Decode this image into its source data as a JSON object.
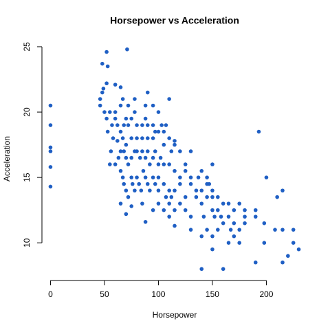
{
  "chart_data": {
    "type": "scatter",
    "title": "Horsepower vs Acceleration",
    "x_label": "Horsepower",
    "y_label": "Acceleration",
    "color": "#1f5fc4",
    "xlim": [
      -9.2,
      239.2
    ],
    "ylim": [
      7.328,
      25.472
    ],
    "xticks": [
      0,
      50,
      100,
      150,
      200
    ],
    "yticks": [
      10,
      15,
      20,
      25
    ],
    "x": [
      0,
      0,
      0,
      0,
      0,
      0,
      46,
      46,
      48,
      49,
      65,
      60,
      52,
      53,
      48,
      52,
      71,
      88,
      90,
      110,
      100,
      95,
      78,
      72,
      67,
      65,
      60,
      50,
      55,
      52,
      53,
      57,
      58,
      56,
      55,
      60,
      62,
      65,
      67,
      68,
      70,
      72,
      75,
      78,
      80,
      85,
      88,
      90,
      95,
      97,
      100,
      105,
      110,
      112,
      115,
      68,
      70,
      72,
      75,
      78,
      80,
      83,
      85,
      88,
      90,
      92,
      95,
      97,
      100,
      102,
      105,
      110,
      115,
      120,
      125,
      130,
      120,
      60,
      63,
      65,
      67,
      68,
      70,
      72,
      75,
      76,
      78,
      80,
      82,
      84,
      86,
      88,
      90,
      92,
      95,
      97,
      100,
      100,
      105,
      107,
      110,
      110,
      112,
      115,
      115,
      120,
      125,
      130,
      130,
      135,
      137,
      140,
      140,
      142,
      145,
      145,
      147,
      150,
      150,
      152,
      155,
      155,
      158,
      160,
      160,
      165,
      165,
      167,
      170,
      170,
      170,
      175,
      175,
      180,
      180,
      180,
      175,
      140,
      145,
      150,
      130,
      125,
      120,
      115,
      105,
      107,
      103,
      95,
      90,
      85,
      80,
      75,
      70,
      65,
      62,
      65,
      70,
      75,
      85,
      88,
      95,
      100,
      105,
      110,
      115,
      125,
      150,
      150,
      140,
      160,
      140,
      190,
      215,
      220,
      230,
      225,
      198,
      215,
      225,
      198,
      190,
      190,
      208,
      210,
      215,
      200,
      193,
      150,
      145,
      135,
      130,
      155,
      165
    ],
    "values": [
      20.5,
      19,
      17.3,
      17,
      15.8,
      14.3,
      20.5,
      21,
      21.5,
      21.8,
      21.9,
      22.1,
      22.2,
      23.5,
      23.7,
      24.6,
      24.8,
      20.5,
      21.5,
      21,
      20,
      20.5,
      21,
      20.5,
      21,
      20.5,
      20,
      20,
      20,
      19.5,
      18.5,
      19,
      18,
      17,
      16,
      19.5,
      19,
      18.5,
      18,
      19,
      19.5,
      19,
      19.5,
      20,
      19,
      19,
      19.5,
      19,
      19,
      18.5,
      18.5,
      18.5,
      18,
      17,
      17.5,
      17,
      16.5,
      16,
      16.5,
      17,
      17,
      16.5,
      17,
      16.5,
      17,
      16,
      16.5,
      17,
      16,
      16.5,
      16,
      16,
      15.5,
      15,
      16,
      17,
      14.5,
      16,
      16.5,
      15.5,
      15,
      14.5,
      14,
      13.5,
      15,
      14.5,
      14,
      15,
      14.5,
      14,
      15.5,
      15,
      14.5,
      14,
      15,
      14.5,
      15,
      14,
      14.5,
      13.5,
      14,
      13,
      13.5,
      14,
      12.5,
      13,
      13.5,
      12,
      14.5,
      14,
      15,
      14,
      13,
      12,
      13.5,
      11,
      14.5,
      13.5,
      12.5,
      12,
      12.5,
      13.5,
      12,
      13,
      11.5,
      12,
      10,
      11,
      12.5,
      11.5,
      10.5,
      11,
      13,
      12,
      11.5,
      12.5,
      10,
      15.5,
      15,
      14,
      15,
      15.5,
      17,
      17.8,
      17.5,
      19,
      19,
      18,
      18,
      18,
      18,
      18,
      17.5,
      17,
      17.8,
      13,
      12.2,
      12.8,
      13,
      11.6,
      12.5,
      13,
      12.5,
      12,
      11.3,
      12.5,
      10.5,
      9.5,
      10.5,
      8,
      8,
      8.5,
      8.5,
      9,
      9.5,
      10,
      10,
      11,
      11,
      11.5,
      12,
      12.5,
      11,
      13.5,
      14,
      15,
      18.5,
      16,
      14.5,
      13.5,
      11,
      11,
      13
    ]
  }
}
